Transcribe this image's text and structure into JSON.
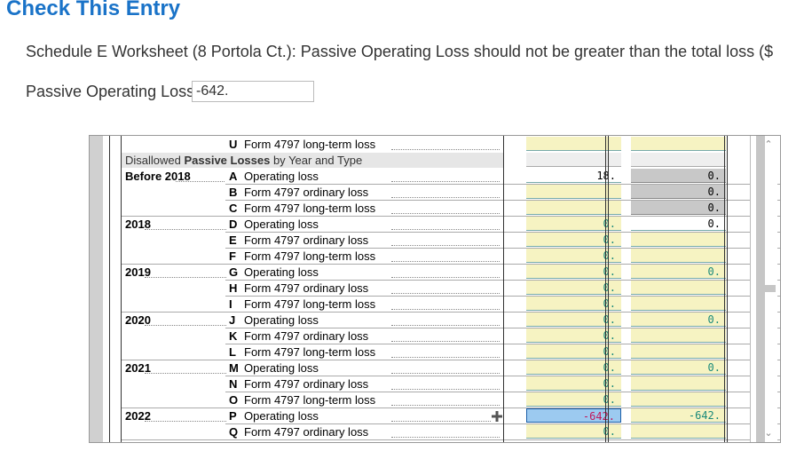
{
  "header": {
    "title": "Check This Entry"
  },
  "message": "Schedule E Worksheet (8 Portola Ct.): Passive Operating Loss should not be greater than the total loss ($",
  "field": {
    "label": "Passive Operating Loss",
    "value": "-642."
  },
  "table": {
    "top_row": {
      "letter": "U",
      "desc": "Form 4797 long-term loss"
    },
    "section_header_pre": "Disallowed ",
    "section_header_bold": "Passive Losses",
    "section_header_post": " by Year and Type",
    "rows": [
      {
        "year": "Before 2018",
        "letter": "A",
        "desc": "Operating loss",
        "c1": "18.",
        "c2": "0."
      },
      {
        "year": "",
        "letter": "B",
        "desc": "Form 4797 ordinary loss",
        "c1": "",
        "c2": "0."
      },
      {
        "year": "",
        "letter": "C",
        "desc": "Form 4797 long-term loss",
        "c1": "",
        "c2": "0."
      },
      {
        "year": "2018",
        "letter": "D",
        "desc": "Operating loss",
        "c1": "0.",
        "c2": "0."
      },
      {
        "year": "",
        "letter": "E",
        "desc": "Form 4797 ordinary loss",
        "c1": "0.",
        "c2": ""
      },
      {
        "year": "",
        "letter": "F",
        "desc": "Form 4797 long-term loss",
        "c1": "0.",
        "c2": ""
      },
      {
        "year": "2019",
        "letter": "G",
        "desc": "Operating loss",
        "c1": "0.",
        "c2": "0."
      },
      {
        "year": "",
        "letter": "H",
        "desc": "Form 4797 ordinary loss",
        "c1": "0.",
        "c2": ""
      },
      {
        "year": "",
        "letter": "I",
        "desc": "Form 4797 long-term loss",
        "c1": "0.",
        "c2": ""
      },
      {
        "year": "2020",
        "letter": "J",
        "desc": "Operating loss",
        "c1": "0.",
        "c2": "0."
      },
      {
        "year": "",
        "letter": "K",
        "desc": "Form 4797 ordinary loss",
        "c1": "0.",
        "c2": ""
      },
      {
        "year": "",
        "letter": "L",
        "desc": "Form 4797 long-term loss",
        "c1": "0.",
        "c2": ""
      },
      {
        "year": "2021",
        "letter": "M",
        "desc": "Operating loss",
        "c1": "0.",
        "c2": "0."
      },
      {
        "year": "",
        "letter": "N",
        "desc": "Form 4797 ordinary loss",
        "c1": "0.",
        "c2": ""
      },
      {
        "year": "",
        "letter": "O",
        "desc": "Form 4797 long-term loss",
        "c1": "0.",
        "c2": ""
      },
      {
        "year": "2022",
        "letter": "P",
        "desc": "Operating loss",
        "c1": "-642.",
        "c2": "-642."
      },
      {
        "year": "",
        "letter": "Q",
        "desc": "Form 4797 ordinary loss",
        "c1": "0.",
        "c2": ""
      }
    ]
  },
  "icons": {
    "expand": "plus-icon",
    "scroll_up": "chevron-up-icon",
    "scroll_down": "chevron-down-icon"
  },
  "colors": {
    "title": "#1a73c8",
    "teal_value": "#1a8a7a",
    "selected_value": "#c2185b",
    "selected_bg": "#9ccaf0",
    "input_bg": "#f6f3c2"
  }
}
